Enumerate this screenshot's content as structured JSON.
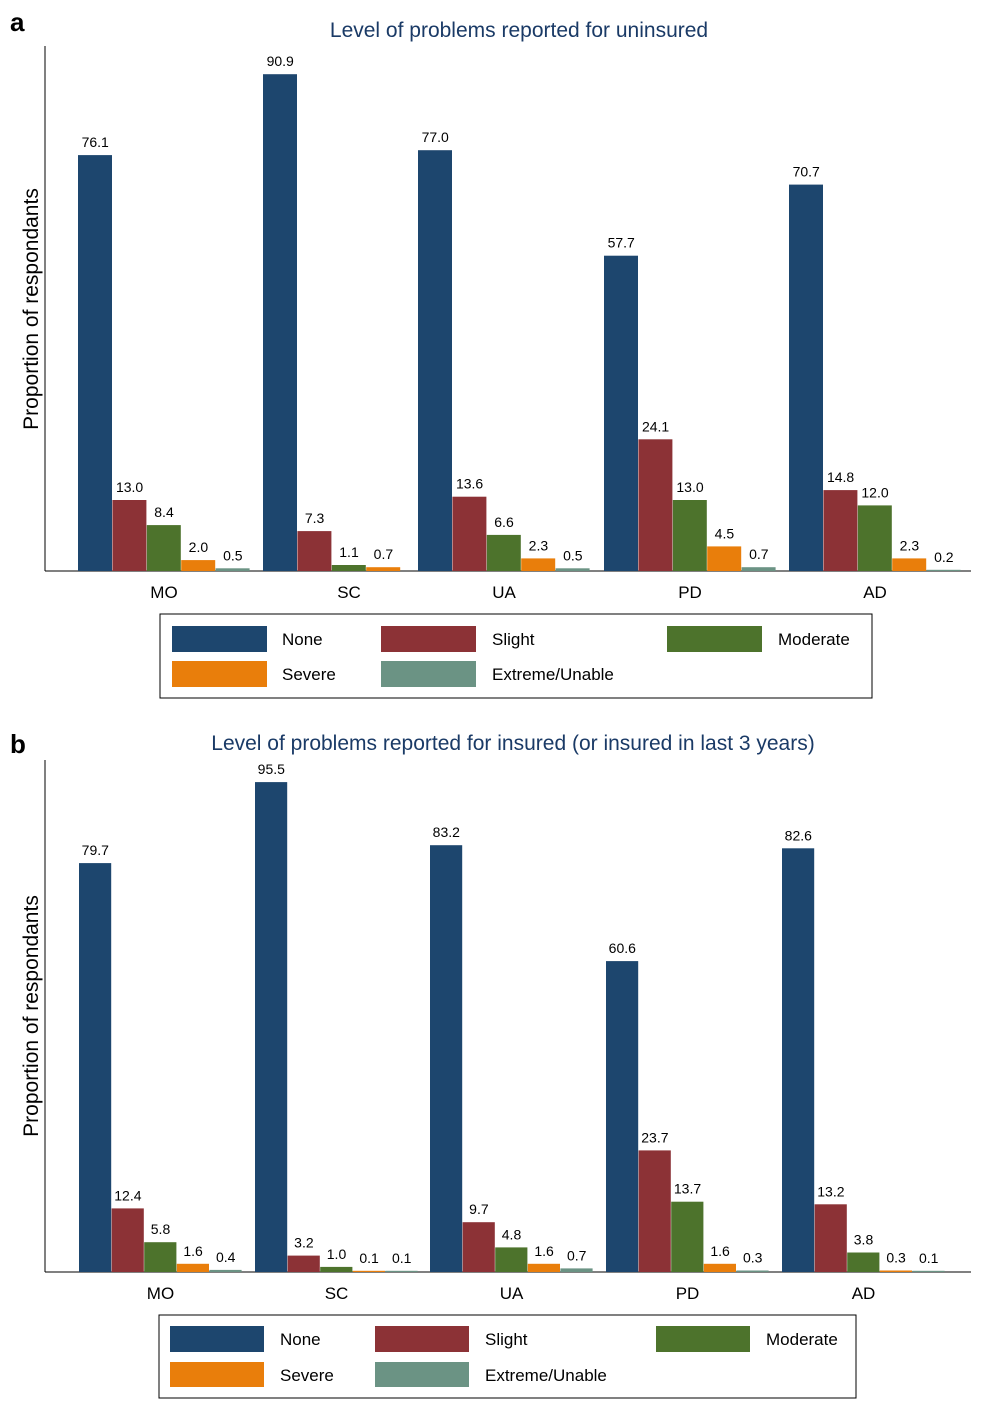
{
  "colors": {
    "None": "#1d466e",
    "Slight": "#8c3236",
    "Moderate": "#4d732c",
    "Severe": "#e97e0b",
    "Extreme/Unable": "#6b9384"
  },
  "chart_data": [
    {
      "type": "bar",
      "panel": "a",
      "title": "Level of problems reported for uninsured",
      "ylabel": "Proportion of respondants",
      "xlabel": "",
      "ylim": [
        0,
        100
      ],
      "grid": false,
      "legend_position": "bottom",
      "categories": [
        "MO",
        "SC",
        "UA",
        "PD",
        "AD"
      ],
      "series": [
        {
          "name": "None",
          "values": [
            76.1,
            90.9,
            77.0,
            57.7,
            70.7
          ],
          "labels": [
            "76.1",
            "90.9",
            "77.0",
            "57.7",
            "70.7"
          ]
        },
        {
          "name": "Slight",
          "values": [
            13.0,
            7.3,
            13.6,
            24.1,
            14.8
          ],
          "labels": [
            "13.0",
            "7.3",
            "13.6",
            "24.1",
            "14.8"
          ]
        },
        {
          "name": "Moderate",
          "values": [
            8.4,
            1.1,
            6.6,
            13.0,
            12.0
          ],
          "labels": [
            "8.4",
            "1.1",
            "6.6",
            "13.0",
            "12.0"
          ]
        },
        {
          "name": "Severe",
          "values": [
            2.0,
            0.7,
            2.3,
            4.5,
            2.3
          ],
          "labels": [
            "2.0",
            "0.7",
            "2.3",
            "4.5",
            "2.3"
          ]
        },
        {
          "name": "Extreme/Unable",
          "values": [
            0.5,
            null,
            0.5,
            0.7,
            0.2
          ],
          "labels": [
            "0.5",
            "",
            "0.5",
            "0.7",
            "0.2"
          ]
        }
      ]
    },
    {
      "type": "bar",
      "panel": "b",
      "title": "Level of problems reported for insured (or insured in last 3 years)",
      "ylabel": "Proportion of respondants",
      "xlabel": "",
      "ylim": [
        0,
        100
      ],
      "grid": false,
      "legend_position": "bottom",
      "categories": [
        "MO",
        "SC",
        "UA",
        "PD",
        "AD"
      ],
      "series": [
        {
          "name": "None",
          "values": [
            79.7,
            95.5,
            83.2,
            60.6,
            82.6
          ],
          "labels": [
            "79.7",
            "95.5",
            "83.2",
            "60.6",
            "82.6"
          ]
        },
        {
          "name": "Slight",
          "values": [
            12.4,
            3.2,
            9.7,
            23.7,
            13.2
          ],
          "labels": [
            "12.4",
            "3.2",
            "9.7",
            "23.7",
            "13.2"
          ]
        },
        {
          "name": "Moderate",
          "values": [
            5.8,
            1.0,
            4.8,
            13.7,
            3.8
          ],
          "labels": [
            "5.8",
            "1.0",
            "4.8",
            "13.7",
            "3.8"
          ]
        },
        {
          "name": "Severe",
          "values": [
            1.6,
            0.1,
            1.6,
            1.6,
            0.3
          ],
          "labels": [
            "1.6",
            "0.1",
            "1.6",
            "1.6",
            "0.3"
          ]
        },
        {
          "name": "Extreme/Unable",
          "values": [
            0.4,
            0.1,
            0.7,
            0.3,
            0.1
          ],
          "labels": [
            "0.4",
            "0.1",
            "0.7",
            "0.3",
            "0.1"
          ]
        }
      ]
    }
  ]
}
